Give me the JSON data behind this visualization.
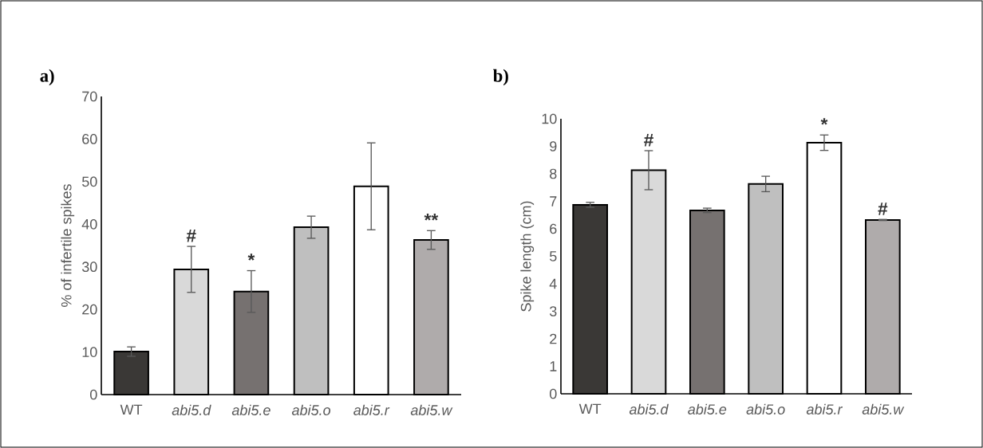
{
  "chart_data": [
    {
      "type": "bar",
      "title": "a)",
      "ylabel": "% of infertile spikes",
      "categories": [
        "WT",
        "abi5.d",
        "abi5.e",
        "abi5.o",
        "abi5.r",
        "abi5.w"
      ],
      "values": [
        10.1,
        29.4,
        24.2,
        39.3,
        48.9,
        36.3
      ],
      "errors": [
        1.1,
        5.4,
        4.9,
        2.6,
        10.2,
        2.2
      ],
      "colors": [
        "#3a3836",
        "#d9d9d9",
        "#767170",
        "#bfbfbf",
        "#ffffff",
        "#afabab"
      ],
      "ylim": [
        0,
        70
      ],
      "yticks": [
        0,
        10,
        20,
        30,
        40,
        50,
        60,
        70
      ],
      "annotations": [
        "#",
        "*",
        "**"
      ]
    },
    {
      "type": "bar",
      "title": "b)",
      "ylabel": "Spike length (cm)",
      "categories": [
        "WT",
        "abi5.d",
        "abi5.e",
        "abi5.o",
        "abi5.r",
        "abi5.w"
      ],
      "values": [
        6.87,
        8.13,
        6.67,
        7.63,
        9.13,
        6.32
      ],
      "errors": [
        0.09,
        0.71,
        0.08,
        0.28,
        0.28,
        0.02
      ],
      "colors": [
        "#3a3836",
        "#d9d9d9",
        "#767170",
        "#bfbfbf",
        "#ffffff",
        "#afabab"
      ],
      "ylim": [
        0,
        10
      ],
      "yticks": [
        0,
        1,
        2,
        3,
        4,
        5,
        6,
        7,
        8,
        9,
        10
      ],
      "annotations": [
        "#",
        "*",
        "#"
      ]
    }
  ]
}
